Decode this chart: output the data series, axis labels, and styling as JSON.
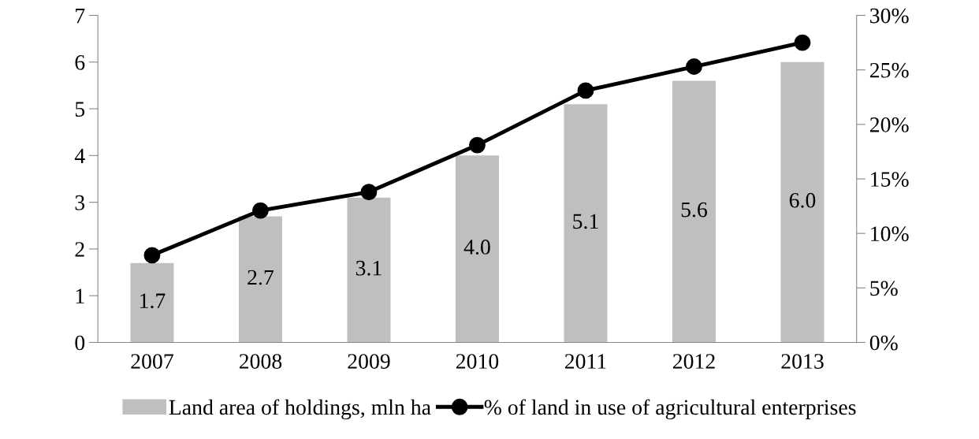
{
  "chart_data": {
    "type": "bar",
    "categories": [
      "2007",
      "2008",
      "2009",
      "2010",
      "2011",
      "2012",
      "2013"
    ],
    "series": [
      {
        "name": "Land area of holdings, mln ha",
        "color": "#bfbfbf",
        "values": [
          1.7,
          2.7,
          3.1,
          4.0,
          5.1,
          5.6,
          6.0
        ],
        "value_labels": [
          "1.7",
          "2.7",
          "3.1",
          "4.0",
          "5.1",
          "5.6",
          "6.0"
        ]
      },
      {
        "name": "% of land in use of agricultural enterprises",
        "type": "line",
        "axis": "y2",
        "color": "#000000",
        "marker": "circle",
        "values": [
          8.0,
          12.1,
          13.8,
          18.1,
          23.1,
          25.3,
          27.5
        ]
      }
    ],
    "ylim": [
      0,
      7
    ],
    "yticks": [
      0,
      1,
      2,
      3,
      4,
      5,
      6,
      7
    ],
    "y2lim": [
      0,
      30
    ],
    "y2ticks": [
      {
        "value": 0,
        "label": "0%"
      },
      {
        "value": 5,
        "label": "5%"
      },
      {
        "value": 10,
        "label": "10%"
      },
      {
        "value": 15,
        "label": "15%"
      },
      {
        "value": 20,
        "label": "20%"
      },
      {
        "value": 25,
        "label": "25%"
      },
      {
        "value": 30,
        "label": "30%"
      }
    ],
    "grid": false,
    "legend": "bottom"
  }
}
